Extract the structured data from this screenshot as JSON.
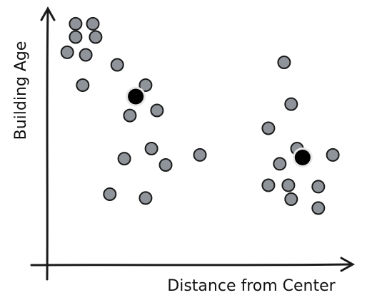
{
  "chart_data": {
    "type": "scatter",
    "title": "",
    "xlabel": "Distance from Center",
    "ylabel": "Building Age",
    "xlim": [
      0,
      100
    ],
    "ylim": [
      0,
      100
    ],
    "grid": false,
    "legend": "none",
    "series": [
      {
        "values": [
          {
            "x": 8.3,
            "y": 95.8
          },
          {
            "x": 13.9,
            "y": 95.8
          },
          {
            "x": 8.3,
            "y": 90.0
          },
          {
            "x": 14.8,
            "y": 90.0
          },
          {
            "x": 5.6,
            "y": 83.3
          },
          {
            "x": 11.6,
            "y": 82.2
          },
          {
            "x": 21.8,
            "y": 77.8
          },
          {
            "x": 10.6,
            "y": 68.9
          },
          {
            "x": 31.0,
            "y": 68.9
          },
          {
            "x": 25.9,
            "y": 55.6
          },
          {
            "x": 34.7,
            "y": 57.8
          },
          {
            "x": 32.9,
            "y": 41.1
          },
          {
            "x": 24.1,
            "y": 36.7
          },
          {
            "x": 37.5,
            "y": 33.9
          },
          {
            "x": 48.6,
            "y": 38.3
          },
          {
            "x": 19.4,
            "y": 21.1
          },
          {
            "x": 31.0,
            "y": 19.4
          },
          {
            "x": 75.9,
            "y": 78.9
          },
          {
            "x": 78.2,
            "y": 60.6
          },
          {
            "x": 70.8,
            "y": 50.0
          },
          {
            "x": 80.1,
            "y": 41.1
          },
          {
            "x": 74.5,
            "y": 34.4
          },
          {
            "x": 91.7,
            "y": 38.3
          },
          {
            "x": 70.8,
            "y": 25.0
          },
          {
            "x": 77.3,
            "y": 25.0
          },
          {
            "x": 87.0,
            "y": 24.4
          },
          {
            "x": 78.2,
            "y": 18.9
          },
          {
            "x": 87.0,
            "y": 15.0
          }
        ],
        "color": "#8e9499"
      }
    ],
    "centroids": {
      "values": [
        {
          "x": 27.8,
          "y": 63.9
        },
        {
          "x": 81.9,
          "y": 37.2
        }
      ],
      "color": "#000000"
    }
  }
}
